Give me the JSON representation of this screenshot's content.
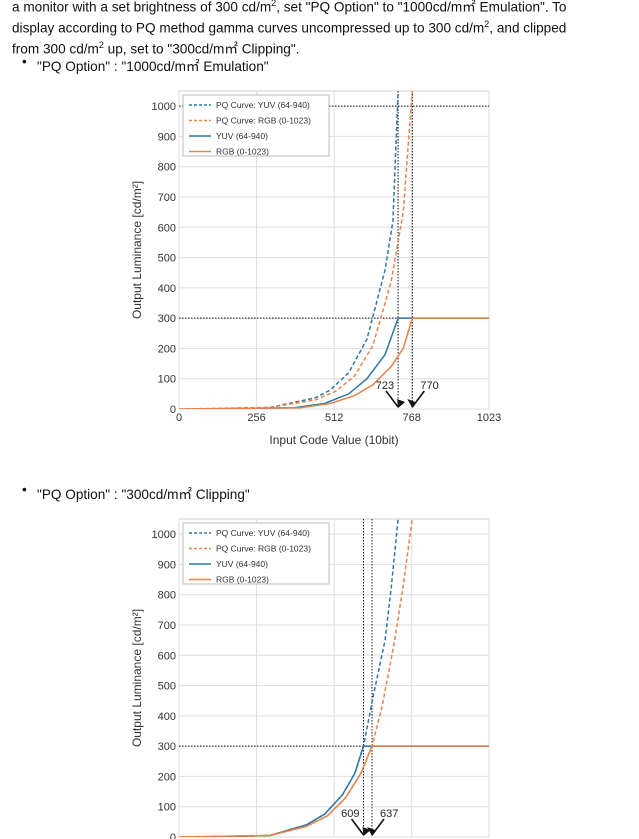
{
  "intro": {
    "line1_a": "a monitor with a set brightness of 300 cd/m",
    "line1_b": ", set \"PQ Option\" to \"1000cd/m㎡ Emulation\". To",
    "line2_a": "display according to PQ method gamma curves uncompressed up to 300 cd/m",
    "line2_b": ", and clipped",
    "line3_a": "from 300 cd/m",
    "line3_b": " up, set to \"300cd/m㎡ Clipping\".",
    "sup": "2"
  },
  "sections": [
    {
      "bullet": "•",
      "label": "\"PQ Option\" : \"1000cd/m㎡ Emulation\""
    },
    {
      "bullet": "•",
      "label": "\"PQ Option\" : \"300cd/m㎡ Clipping\""
    }
  ],
  "chart_data": [
    {
      "type": "line",
      "title": "",
      "xlabel": "Input Code Value (10bit)",
      "ylabel": "Output Luminance [cd/m²]",
      "xlim": [
        0,
        1023
      ],
      "ylim": [
        0,
        1050
      ],
      "xticks": [
        0,
        256,
        512,
        768,
        1023
      ],
      "yticks": [
        0,
        100,
        200,
        300,
        400,
        500,
        600,
        700,
        800,
        900,
        1000
      ],
      "grid": true,
      "legend_position": "top-left",
      "series": [
        {
          "name": "PQ Curve: YUV (64-940)",
          "style": "dashed",
          "color": "#2f76a8",
          "x": [
            64,
            300,
            450,
            500,
            560,
            620,
            680,
            706,
            723
          ],
          "y": [
            0,
            5,
            37,
            63,
            120,
            230,
            460,
            620,
            1050
          ]
        },
        {
          "name": "PQ Curve: RGB (0-1023)",
          "style": "dashed",
          "color": "#e8834a",
          "x": [
            0,
            300,
            450,
            520,
            580,
            640,
            700,
            740,
            770
          ],
          "y": [
            0,
            5,
            30,
            60,
            110,
            210,
            420,
            650,
            1050
          ]
        },
        {
          "name": "YUV (64-940)",
          "style": "solid",
          "color": "#2f76a8",
          "x": [
            64,
            380,
            480,
            560,
            620,
            680,
            723,
            1023
          ],
          "y": [
            0,
            4,
            18,
            50,
            100,
            180,
            300,
            300
          ]
        },
        {
          "name": "RGB (0-1023)",
          "style": "solid",
          "color": "#e8834a",
          "x": [
            0,
            400,
            500,
            580,
            640,
            700,
            740,
            770,
            1023
          ],
          "y": [
            0,
            4,
            18,
            45,
            80,
            140,
            200,
            300,
            300
          ]
        }
      ],
      "ref_x": [
        723,
        770
      ],
      "ref_y": [
        300,
        1000
      ],
      "annotations": [
        {
          "text": "723",
          "x": 723
        },
        {
          "text": "770",
          "x": 770
        }
      ]
    },
    {
      "type": "line",
      "title": "",
      "xlabel": "",
      "ylabel": "Output Luminance [cd/m²]",
      "xlim": [
        0,
        1023
      ],
      "ylim": [
        0,
        1050
      ],
      "yticks": [
        0,
        100,
        200,
        300,
        400,
        500,
        600,
        700,
        800,
        900,
        1000
      ],
      "grid": true,
      "legend_position": "top-left",
      "series": [
        {
          "name": "PQ Curve: YUV (64-940)",
          "style": "dashed",
          "color": "#2f76a8",
          "x": [
            64,
            300,
            420,
            480,
            540,
            580,
            609,
            640,
            680,
            700,
            723
          ],
          "y": [
            0,
            5,
            40,
            75,
            140,
            210,
            300,
            460,
            650,
            820,
            1050
          ]
        },
        {
          "name": "PQ Curve: RGB (0-1023)",
          "style": "dashed",
          "color": "#e8834a",
          "x": [
            0,
            300,
            420,
            490,
            550,
            600,
            637,
            670,
            710,
            740,
            770
          ],
          "y": [
            0,
            5,
            35,
            70,
            130,
            210,
            300,
            430,
            640,
            830,
            1050
          ]
        },
        {
          "name": "YUV (64-940)",
          "style": "solid",
          "color": "#2f76a8",
          "x": [
            64,
            300,
            420,
            480,
            540,
            580,
            609,
            1023
          ],
          "y": [
            0,
            5,
            40,
            75,
            140,
            210,
            300,
            300
          ]
        },
        {
          "name": "RGB (0-1023)",
          "style": "solid",
          "color": "#e8834a",
          "x": [
            0,
            300,
            420,
            490,
            550,
            600,
            637,
            1023
          ],
          "y": [
            0,
            5,
            35,
            70,
            130,
            210,
            300,
            300
          ]
        }
      ],
      "ref_x": [
        609,
        637
      ],
      "ref_y": [
        300
      ],
      "annotations": [
        {
          "text": "609",
          "x": 609
        },
        {
          "text": "637",
          "x": 637
        }
      ]
    }
  ]
}
